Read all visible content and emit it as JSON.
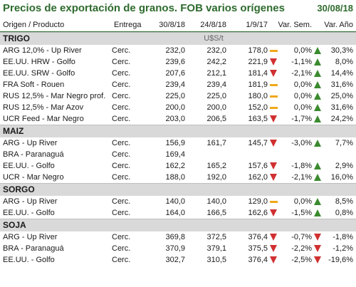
{
  "title": "Precios de exportación de granos. FOB varios orígenes",
  "date": "30/08/18",
  "headers": {
    "origin": "Origen / Producto",
    "delivery": "Entrega",
    "d1": "30/8/18",
    "d2": "24/8/18",
    "d3": "1/9/17",
    "var_week": "Var. Sem.",
    "var_year": "Var. Año"
  },
  "colors": {
    "title": "#2e6b2e",
    "up": "#3a8a2e",
    "down": "#d03030",
    "flat": "#f0a818",
    "section_bg": "#d9d9d9"
  },
  "sections": [
    {
      "name": "TRIGO",
      "unit": "U$S/t",
      "rows": [
        {
          "product": "ARG 12,0% - Up River",
          "delivery": "Cerc.",
          "d1": "232,0",
          "d2": "232,0",
          "d3": "178,0",
          "icon1": "flat",
          "var_week": "0,0%",
          "icon2": "up",
          "var_year": "30,3%"
        },
        {
          "product": "EE.UU. HRW - Golfo",
          "delivery": "Cerc.",
          "d1": "239,6",
          "d2": "242,2",
          "d3": "221,9",
          "icon1": "down",
          "var_week": "-1,1%",
          "icon2": "up",
          "var_year": "8,0%"
        },
        {
          "product": "EE.UU. SRW - Golfo",
          "delivery": "Cerc.",
          "d1": "207,6",
          "d2": "212,1",
          "d3": "181,4",
          "icon1": "down",
          "var_week": "-2,1%",
          "icon2": "up",
          "var_year": "14,4%"
        },
        {
          "product": "FRA Soft - Rouen",
          "delivery": "Cerc.",
          "d1": "239,4",
          "d2": "239,4",
          "d3": "181,9",
          "icon1": "flat",
          "var_week": "0,0%",
          "icon2": "up",
          "var_year": "31,6%"
        },
        {
          "product": "RUS 12,5% - Mar Negro prof.",
          "delivery": "Cerc.",
          "d1": "225,0",
          "d2": "225,0",
          "d3": "180,0",
          "icon1": "flat",
          "var_week": "0,0%",
          "icon2": "up",
          "var_year": "25,0%"
        },
        {
          "product": "RUS 12,5% - Mar Azov",
          "delivery": "Cerc.",
          "d1": "200,0",
          "d2": "200,0",
          "d3": "152,0",
          "icon1": "flat",
          "var_week": "0,0%",
          "icon2": "up",
          "var_year": "31,6%"
        },
        {
          "product": "UCR Feed - Mar Negro",
          "delivery": "Cerc.",
          "d1": "203,0",
          "d2": "206,5",
          "d3": "163,5",
          "icon1": "down",
          "var_week": "-1,7%",
          "icon2": "up",
          "var_year": "24,2%"
        }
      ]
    },
    {
      "name": "MAIZ",
      "unit": "",
      "rows": [
        {
          "product": "ARG - Up River",
          "delivery": "Cerc.",
          "d1": "156,9",
          "d2": "161,7",
          "d3": "145,7",
          "icon1": "down",
          "var_week": "-3,0%",
          "icon2": "up",
          "var_year": "7,7%"
        },
        {
          "product": "BRA - Paranaguá",
          "delivery": "Cerc.",
          "d1": "169,4",
          "d2": "",
          "d3": "",
          "icon1": "",
          "var_week": "",
          "icon2": "",
          "var_year": ""
        },
        {
          "product": "EE.UU. - Golfo",
          "delivery": "Cerc.",
          "d1": "162,2",
          "d2": "165,2",
          "d3": "157,6",
          "icon1": "down",
          "var_week": "-1,8%",
          "icon2": "up",
          "var_year": "2,9%"
        },
        {
          "product": "UCR - Mar Negro",
          "delivery": "Cerc.",
          "d1": "188,0",
          "d2": "192,0",
          "d3": "162,0",
          "icon1": "down",
          "var_week": "-2,1%",
          "icon2": "up",
          "var_year": "16,0%"
        }
      ]
    },
    {
      "name": "SORGO",
      "unit": "",
      "rows": [
        {
          "product": "ARG - Up River",
          "delivery": "Cerc.",
          "d1": "140,0",
          "d2": "140,0",
          "d3": "129,0",
          "icon1": "flat",
          "var_week": "0,0%",
          "icon2": "up",
          "var_year": "8,5%"
        },
        {
          "product": "EE.UU. - Golfo",
          "delivery": "Cerc.",
          "d1": "164,0",
          "d2": "166,5",
          "d3": "162,6",
          "icon1": "down",
          "var_week": "-1,5%",
          "icon2": "up",
          "var_year": "0,8%"
        }
      ]
    },
    {
      "name": "SOJA",
      "unit": "",
      "rows": [
        {
          "product": "ARG - Up River",
          "delivery": "Cerc.",
          "d1": "369,8",
          "d2": "372,5",
          "d3": "376,4",
          "icon1": "down",
          "var_week": "-0,7%",
          "icon2": "down",
          "var_year": "-1,8%"
        },
        {
          "product": "BRA - Paranaguá",
          "delivery": "Cerc.",
          "d1": "370,9",
          "d2": "379,1",
          "d3": "375,5",
          "icon1": "down",
          "var_week": "-2,2%",
          "icon2": "down",
          "var_year": "-1,2%"
        },
        {
          "product": "EE.UU. - Golfo",
          "delivery": "Cerc.",
          "d1": "302,7",
          "d2": "310,5",
          "d3": "376,4",
          "icon1": "down",
          "var_week": "-2,5%",
          "icon2": "down",
          "var_year": "-19,6%"
        }
      ]
    }
  ]
}
